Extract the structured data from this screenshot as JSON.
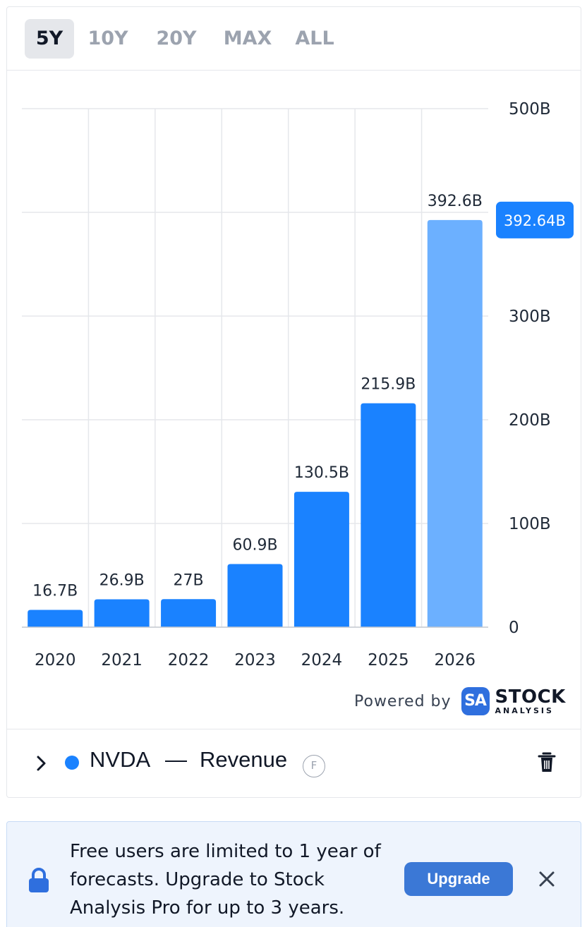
{
  "tabs": [
    {
      "label": "5Y",
      "active": true
    },
    {
      "label": "10Y",
      "active": false
    },
    {
      "label": "20Y",
      "active": false
    },
    {
      "label": "MAX",
      "active": false
    },
    {
      "label": "ALL",
      "active": false
    }
  ],
  "chart_data": {
    "type": "bar",
    "categories": [
      "2020",
      "2021",
      "2022",
      "2023",
      "2024",
      "2025",
      "2026"
    ],
    "series": [
      {
        "values": [
          16.7,
          26.9,
          27.0,
          60.9,
          130.5,
          215.9,
          392.64
        ],
        "data_labels": [
          "16.7B",
          "26.9B",
          "27B",
          "60.9B",
          "130.5B",
          "215.9B",
          "392.6B"
        ],
        "forecast_from_index": 6
      }
    ],
    "ylim": [
      0,
      500
    ],
    "yticks": [
      0,
      100,
      200,
      300,
      500
    ],
    "ytick_labels": [
      "0",
      "100B",
      "200B",
      "300B",
      "500B"
    ],
    "grid": true,
    "y_axis_position": "right",
    "current_value_label": "392.64B",
    "colors": {
      "bar": "#1a82ff",
      "forecast_bar": "#6cb0ff",
      "badge": "#1a82ff",
      "grid": "#e5e7eb"
    }
  },
  "branding": {
    "powered_by": "Powered by",
    "badge": "SA",
    "word1": "STOCK",
    "word2": "ANALYSIS"
  },
  "legend": {
    "ticker": "NVDA",
    "separator": "—",
    "metric": "Revenue",
    "forecast_badge": "F",
    "color": "#1a82ff"
  },
  "notice": {
    "text": "Free users are limited to 1 year of forecasts. Upgrade to Stock Analysis Pro for up to 3 years.",
    "button_label": "Upgrade"
  },
  "icons": {
    "expand": "chevron-right-icon",
    "delete": "trash-icon",
    "lock": "lock-icon",
    "close": "close-icon"
  }
}
